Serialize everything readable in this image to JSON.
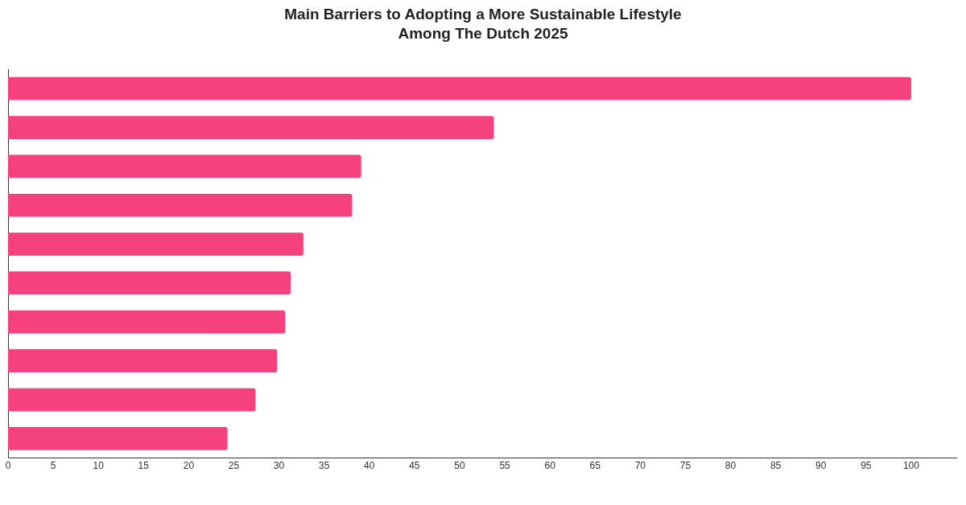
{
  "chart_data": {
    "type": "bar",
    "orientation": "horizontal",
    "title": "Main Barriers to Adopting a More Sustainable Lifestyle Among The Dutch 2025",
    "categories": [
      null,
      null,
      null,
      null,
      null,
      null,
      null,
      null,
      null,
      null
    ],
    "values": [
      100,
      53.8,
      39.1,
      38.1,
      32.7,
      31.3,
      30.7,
      29.8,
      27.4,
      24.3
    ],
    "color": "#f5427e",
    "xlim": [
      0,
      105
    ],
    "xticks": [
      0,
      5,
      10,
      15,
      20,
      25,
      30,
      35,
      40,
      45,
      50,
      55,
      60,
      65,
      70,
      75,
      80,
      85,
      90,
      95,
      100
    ],
    "grid": false,
    "legend": false,
    "tick_labels": "x"
  }
}
